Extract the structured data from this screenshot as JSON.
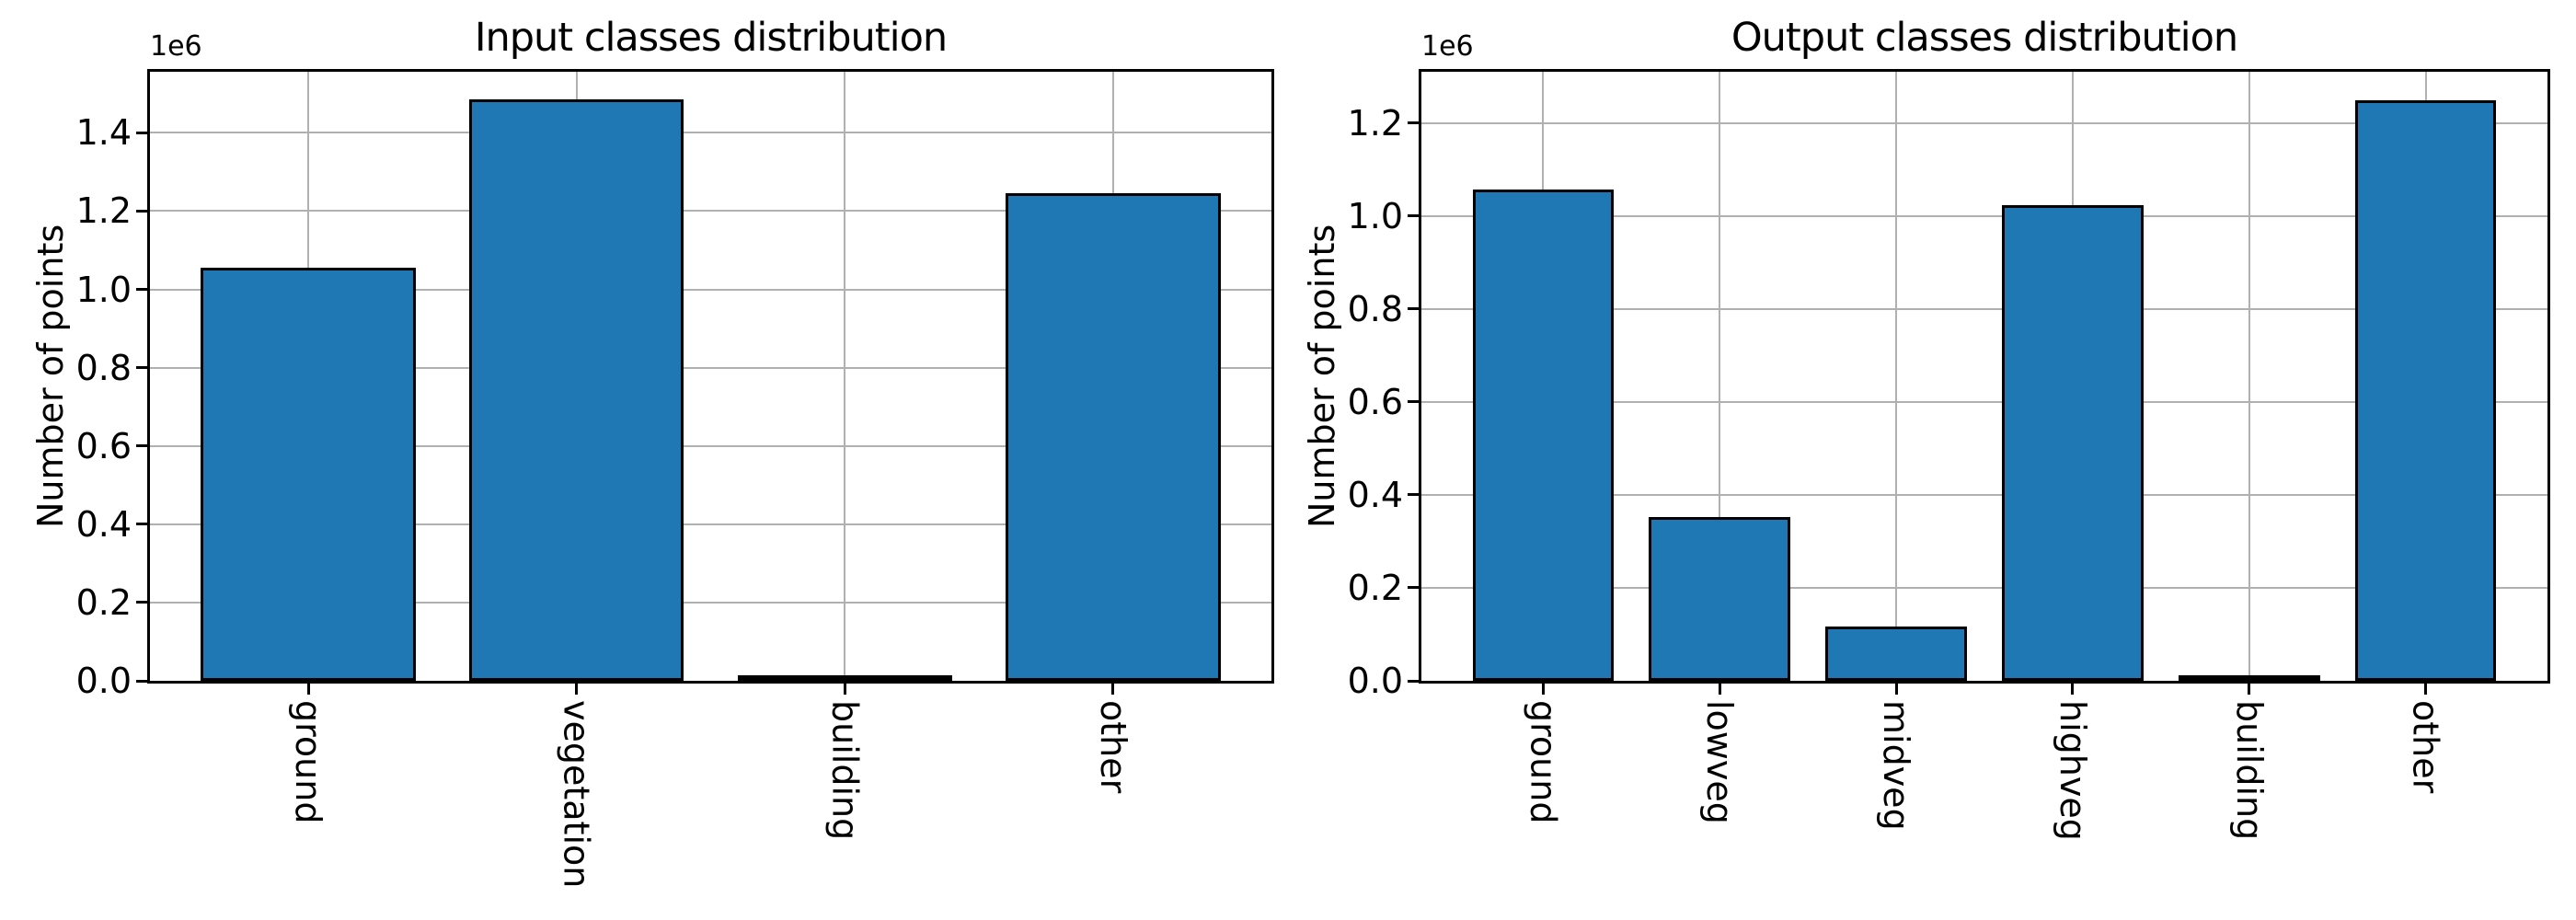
{
  "figure": {
    "background_color": "#ffffff",
    "bar_fill_color": "#1f77b4",
    "bar_edge_color": "#000000",
    "grid_color": "#b0b0b0",
    "axis_color": "#000000",
    "text_color": "#000000"
  },
  "chart_data": [
    {
      "type": "bar",
      "title": "Input classes distribution",
      "ylabel": "Number of points",
      "xlabel": "",
      "offset_text": "1e6",
      "categories": [
        "ground",
        "vegetation",
        "building",
        "other"
      ],
      "values": [
        1052000,
        1482000,
        4000,
        1242000
      ],
      "ylim": [
        0,
        1556000
      ],
      "yticks": [
        0,
        200000,
        400000,
        600000,
        800000,
        1000000,
        1200000,
        1400000
      ],
      "ytick_labels": [
        "0.0",
        "0.2",
        "0.4",
        "0.6",
        "0.8",
        "1.0",
        "1.2",
        "1.4"
      ],
      "xtick_rotation": 90,
      "grid": true,
      "legend": null
    },
    {
      "type": "bar",
      "title": "Output classes distribution",
      "ylabel": "Number of points",
      "xlabel": "",
      "offset_text": "1e6",
      "categories": [
        "ground",
        "lowveg",
        "midveg",
        "highveg",
        "building",
        "other"
      ],
      "values": [
        1054000,
        350000,
        114000,
        1021000,
        6000,
        1245000
      ],
      "ylim": [
        0,
        1310000
      ],
      "yticks": [
        0,
        200000,
        400000,
        600000,
        800000,
        1000000,
        1200000
      ],
      "ytick_labels": [
        "0.0",
        "0.2",
        "0.4",
        "0.6",
        "0.8",
        "1.0",
        "1.2"
      ],
      "xtick_rotation": 90,
      "grid": true,
      "legend": null
    }
  ]
}
